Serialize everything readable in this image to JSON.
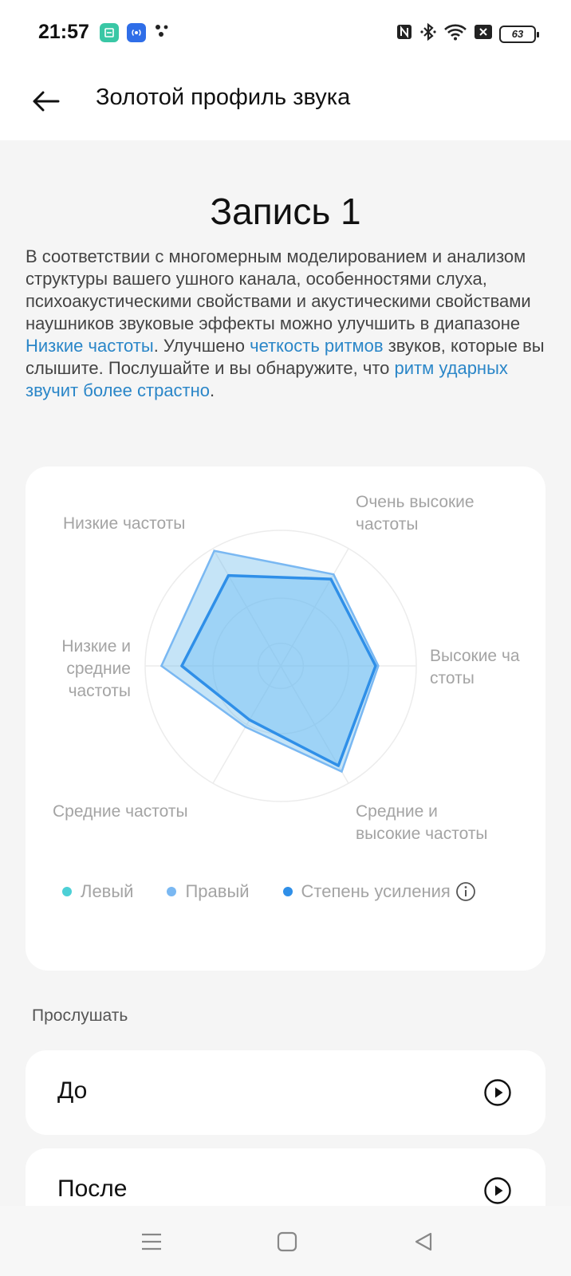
{
  "status_bar": {
    "time": "21:57",
    "battery": "63",
    "icons": [
      "calculator-app-icon",
      "broadcast-app-icon",
      "dots-app-icon",
      "nfc-icon",
      "bluetooth-icon",
      "wifi-icon",
      "sim-off-icon",
      "battery-icon"
    ]
  },
  "header": {
    "title": "Золотой профиль звука",
    "back_icon": "arrow-left-icon"
  },
  "record": {
    "title": "Запись 1",
    "description": {
      "part1": "В соответствии с многомерным моделированием и анализом структуры вашего ушного канала, особенностями слуха, психоакустическими свойствами и акустическими свойствами наушников звуковые эффекты можно улучшить в диапазоне ",
      "highlight1": "Низкие частоты",
      "part2": ". Улучшено ",
      "highlight2": "четкость ритмов",
      "part3": " звуков, которые вы слышите. Послушайте и вы обнаружите, что ",
      "highlight3": "ритм ударных звучит более страстно",
      "part4": "."
    }
  },
  "chart_data": {
    "type": "radar",
    "axes": [
      "Очень высокие частоты",
      "Высокие частоты",
      "Средние и высокие частоты",
      "Средние частоты",
      "Низкие и средние частоты",
      "Низкие частоты"
    ],
    "axis_labels_as_shown": [
      "Очень высокие\nчастоты",
      "Высокие ча\nстоты",
      "Средние и\nвысокие частоты",
      "Средние частоты",
      "Низкие и\nсредние\nчастоты",
      "Низкие частоты"
    ],
    "range": [
      0,
      1
    ],
    "grid": true,
    "series": [
      {
        "name": "Левый",
        "color": "#4dd0d6",
        "values": [
          0.78,
          0.72,
          0.9,
          0.52,
          0.88,
          0.98
        ]
      },
      {
        "name": "Правый",
        "color": "#7ab8f2",
        "values": [
          0.78,
          0.72,
          0.9,
          0.52,
          0.88,
          0.98
        ]
      },
      {
        "name": "Степень усиления",
        "color": "#2f8fe8",
        "values": [
          0.74,
          0.7,
          0.85,
          0.46,
          0.73,
          0.77
        ]
      }
    ],
    "legend_position": "bottom",
    "info_icon": "info-circle-icon"
  },
  "listen": {
    "section_label": "Прослушать",
    "items": [
      {
        "label": "До",
        "icon": "play-circle-icon"
      },
      {
        "label": "После",
        "icon": "play-circle-icon"
      }
    ]
  },
  "nav_bar": {
    "icons": [
      "menu-icon",
      "home-square-icon",
      "back-triangle-icon"
    ]
  }
}
